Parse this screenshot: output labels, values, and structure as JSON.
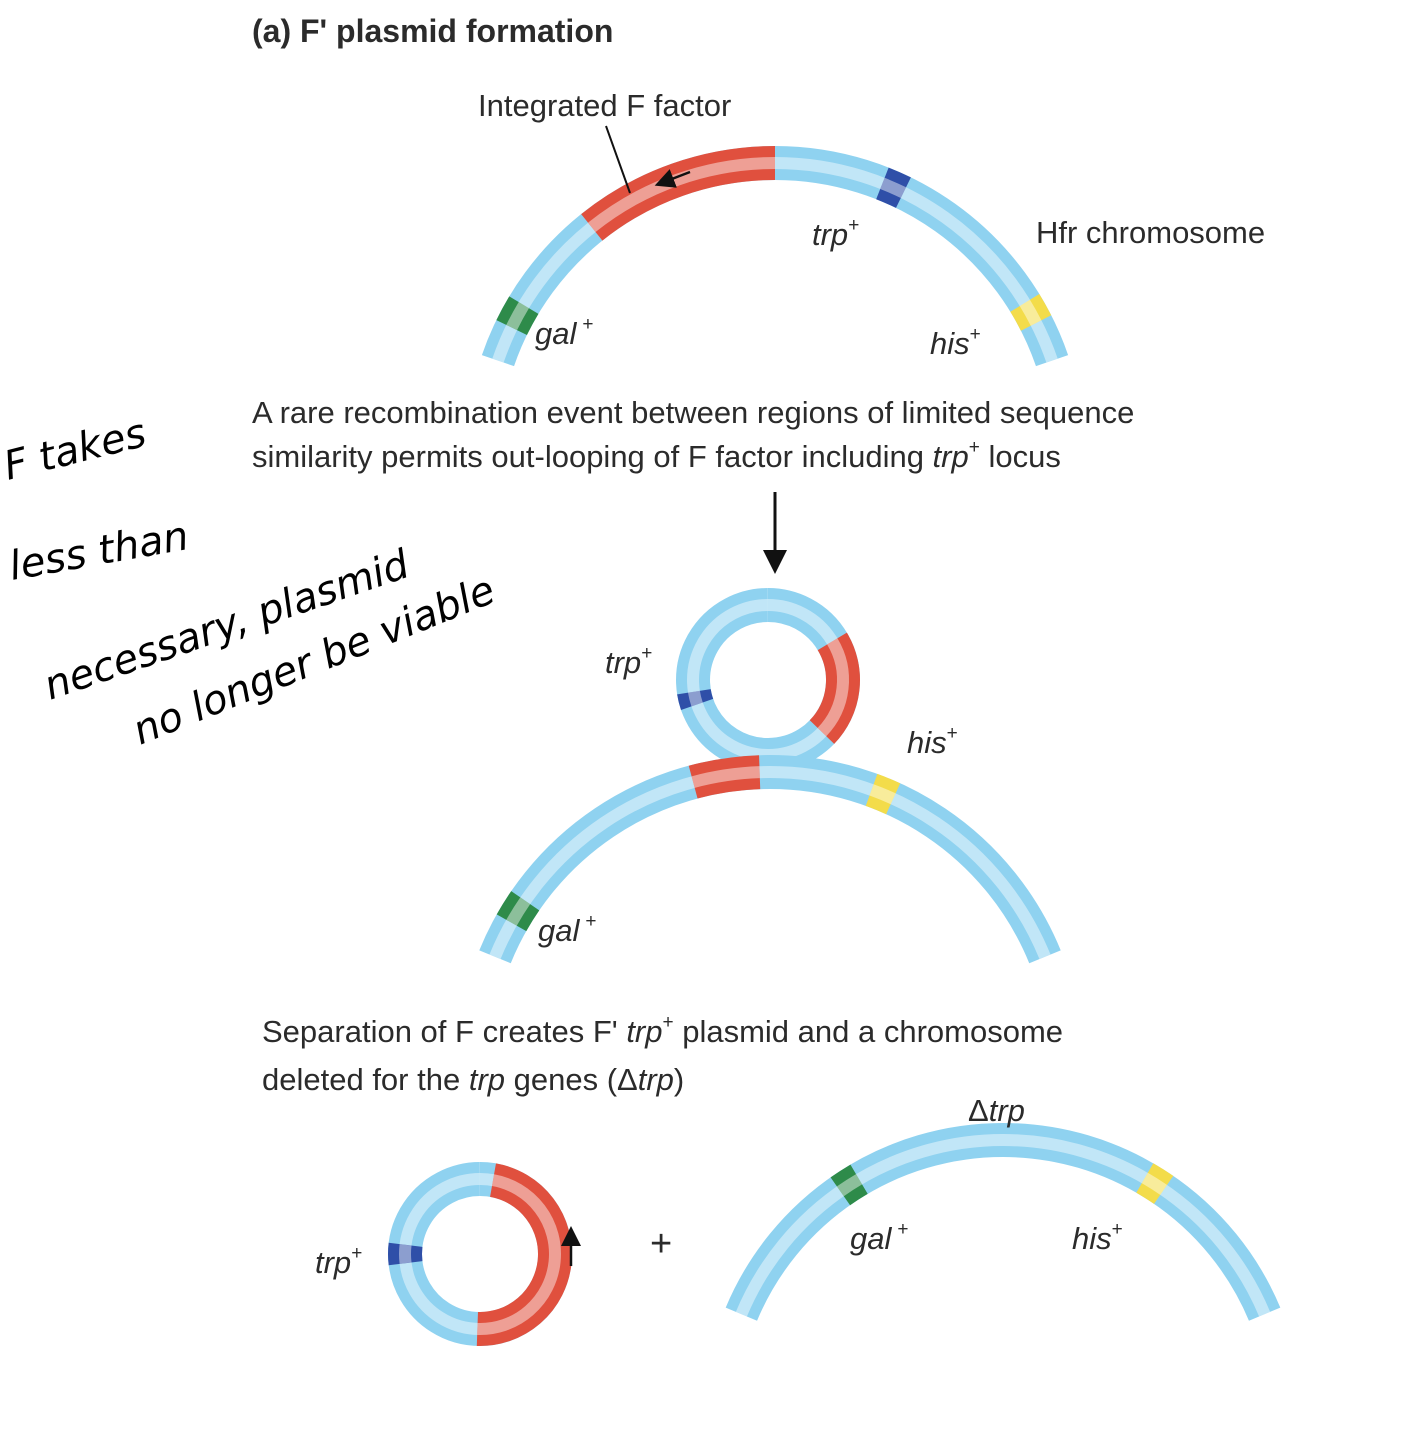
{
  "title": "(a)  F' plasmid formation",
  "colors": {
    "chromosome": "#8fd2f0",
    "f_factor": "#e0503e",
    "trp": "#2f4fa8",
    "gal": "#2e8b4a",
    "his": "#f3dc4a"
  },
  "top": {
    "integrated_label": "Integrated F factor",
    "hfr_label": "Hfr chromosome",
    "trp": "trp",
    "gal": "gal",
    "his": "his",
    "plus": "+"
  },
  "step1": {
    "line1": "A rare recombination event between regions of limited sequence",
    "line2_a": "similarity permits out-looping of F factor including ",
    "line2_gene": "trp",
    "line2_sup": "+",
    "line2_b": " locus"
  },
  "middle": {
    "trp": "trp",
    "his": "his",
    "gal": "gal",
    "plus": "+"
  },
  "step2": {
    "line1_a": "Separation of F creates F' ",
    "line1_gene": "trp",
    "line1_sup": "+",
    "line1_b": " plasmid and a chromosome",
    "line2_a": "deleted for the ",
    "line2_gene": "trp",
    "line2_b": " genes (Δ",
    "line2_gene2": "trp",
    "line2_c": ")"
  },
  "bottom": {
    "delta": "Δ",
    "delta_gene": "trp",
    "trp": "trp",
    "gal": "gal",
    "his": "his",
    "plus": "+",
    "plus_sign": "+"
  },
  "handwriting": [
    "F takes",
    "less than",
    "necessary, plasmid",
    "no longer be viable"
  ]
}
